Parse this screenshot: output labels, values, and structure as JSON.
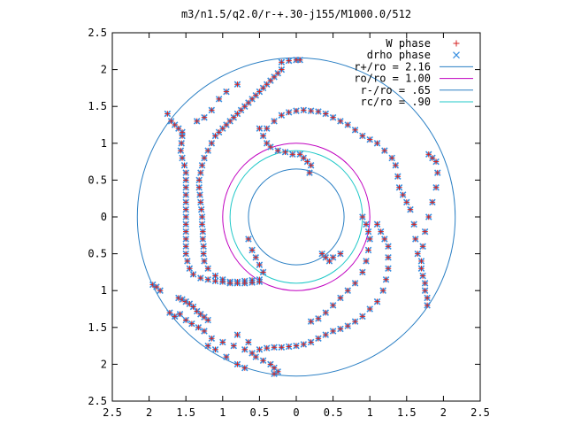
{
  "chart_data": {
    "type": "scatter",
    "title": "m3/n1.5/q2.0/r-+.30-j155/M1000.0/512",
    "xlabel": "",
    "ylabel": "",
    "xlim": [
      -2.5,
      2.5
    ],
    "ylim": [
      -2.5,
      2.5
    ],
    "x_ticks": [
      -2.5,
      -2,
      -1.5,
      -1,
      -0.5,
      0,
      0.5,
      1,
      1.5,
      2,
      2.5
    ],
    "x_tick_labels": [
      "2.5",
      "2",
      "1.5",
      "1",
      "0.5",
      "0",
      "0.5",
      "1",
      "1.5",
      "2",
      "2.5"
    ],
    "y_ticks": [
      2.5,
      2,
      1.5,
      1,
      0.5,
      0,
      -0.5,
      -1,
      -1.5,
      -2,
      -2.5
    ],
    "y_tick_labels": [
      "2.5",
      "2",
      "1.5",
      "1",
      "0.5",
      "0",
      "0.5",
      "1",
      "1.5",
      "2",
      "2.5"
    ],
    "grid": false,
    "legend_position": "top-right",
    "circles": [
      {
        "name": "r+/ro = 2.16",
        "radius": 2.16,
        "color": "#2a7fc4"
      },
      {
        "name": "ro/ro = 1.00",
        "radius": 1.0,
        "color": "#c000c0"
      },
      {
        "name": "r-/ro = .65",
        "radius": 0.65,
        "color": "#2a7fc4"
      },
      {
        "name": "rc/ro = .90",
        "radius": 0.9,
        "color": "#20c8c8"
      }
    ],
    "series": [
      {
        "name": "W phase",
        "marker": "+",
        "color": "#d42020"
      },
      {
        "name": "drho phase",
        "marker": "x",
        "color": "#3a8fe0"
      }
    ],
    "points": [
      [
        -0.2,
        2.1
      ],
      [
        -0.1,
        2.12
      ],
      [
        0.0,
        2.13
      ],
      [
        0.05,
        2.13
      ],
      [
        -0.2,
        2.0
      ],
      [
        -0.25,
        1.95
      ],
      [
        -0.3,
        1.9
      ],
      [
        -0.35,
        1.85
      ],
      [
        -0.4,
        1.8
      ],
      [
        -0.45,
        1.75
      ],
      [
        -0.5,
        1.7
      ],
      [
        -0.55,
        1.65
      ],
      [
        -0.6,
        1.6
      ],
      [
        -0.65,
        1.55
      ],
      [
        -0.7,
        1.5
      ],
      [
        -0.75,
        1.45
      ],
      [
        -0.8,
        1.4
      ],
      [
        -0.85,
        1.35
      ],
      [
        -0.9,
        1.3
      ],
      [
        -0.95,
        1.25
      ],
      [
        -1.0,
        1.2
      ],
      [
        -1.05,
        1.15
      ],
      [
        -1.1,
        1.1
      ],
      [
        -1.15,
        1.0
      ],
      [
        -1.2,
        0.9
      ],
      [
        -1.25,
        0.8
      ],
      [
        -1.28,
        0.7
      ],
      [
        -1.3,
        0.6
      ],
      [
        -1.32,
        0.5
      ],
      [
        -1.32,
        0.4
      ],
      [
        -1.31,
        0.3
      ],
      [
        -1.3,
        0.2
      ],
      [
        -1.29,
        0.1
      ],
      [
        -1.28,
        0.0
      ],
      [
        -1.28,
        -0.1
      ],
      [
        -1.27,
        -0.2
      ],
      [
        -1.27,
        -0.3
      ],
      [
        -1.26,
        -0.4
      ],
      [
        -1.26,
        -0.5
      ],
      [
        -1.25,
        -0.6
      ],
      [
        -1.2,
        -0.7
      ],
      [
        -1.1,
        -0.8
      ],
      [
        -1.0,
        -0.85
      ],
      [
        -0.9,
        -0.88
      ],
      [
        -0.8,
        -0.88
      ],
      [
        -0.7,
        -0.87
      ],
      [
        -0.6,
        -0.86
      ],
      [
        -0.5,
        -0.85
      ],
      [
        -0.45,
        -0.75
      ],
      [
        -0.5,
        -0.65
      ],
      [
        -0.55,
        -0.55
      ],
      [
        -0.6,
        -0.45
      ],
      [
        -0.65,
        -0.3
      ],
      [
        -0.8,
        1.8
      ],
      [
        -0.95,
        1.7
      ],
      [
        -1.05,
        1.6
      ],
      [
        -1.15,
        1.45
      ],
      [
        -1.25,
        1.35
      ],
      [
        -1.35,
        1.3
      ],
      [
        -1.75,
        1.4
      ],
      [
        -1.7,
        1.3
      ],
      [
        -1.65,
        1.25
      ],
      [
        -1.6,
        1.2
      ],
      [
        -1.55,
        1.15
      ],
      [
        -1.55,
        1.1
      ],
      [
        -1.56,
        1.0
      ],
      [
        -1.57,
        0.9
      ],
      [
        -1.55,
        0.8
      ],
      [
        -1.52,
        0.7
      ],
      [
        -1.5,
        0.6
      ],
      [
        -1.5,
        0.5
      ],
      [
        -1.5,
        0.4
      ],
      [
        -1.5,
        0.3
      ],
      [
        -1.5,
        0.2
      ],
      [
        -1.5,
        0.1
      ],
      [
        -1.5,
        0.0
      ],
      [
        -1.5,
        -0.1
      ],
      [
        -1.5,
        -0.2
      ],
      [
        -1.5,
        -0.3
      ],
      [
        -1.5,
        -0.4
      ],
      [
        -1.5,
        -0.5
      ],
      [
        -1.48,
        -0.6
      ],
      [
        -1.45,
        -0.7
      ],
      [
        -1.4,
        -0.78
      ],
      [
        -1.3,
        -0.83
      ],
      [
        -1.2,
        -0.85
      ],
      [
        -1.1,
        -0.87
      ],
      [
        -1.0,
        -0.88
      ],
      [
        -0.9,
        -0.9
      ],
      [
        -0.8,
        -0.9
      ],
      [
        -0.7,
        -0.9
      ],
      [
        -0.6,
        -0.89
      ],
      [
        -0.5,
        -0.88
      ],
      [
        -0.5,
        1.2
      ],
      [
        -0.45,
        1.1
      ],
      [
        -0.4,
        1.0
      ],
      [
        -0.35,
        0.95
      ],
      [
        -0.25,
        0.9
      ],
      [
        -0.15,
        0.88
      ],
      [
        -0.05,
        0.85
      ],
      [
        -0.4,
        1.2
      ],
      [
        -0.3,
        1.3
      ],
      [
        -0.2,
        1.38
      ],
      [
        -0.1,
        1.42
      ],
      [
        0.0,
        1.44
      ],
      [
        0.1,
        1.45
      ],
      [
        0.2,
        1.44
      ],
      [
        0.3,
        1.43
      ],
      [
        0.4,
        1.4
      ],
      [
        0.5,
        1.35
      ],
      [
        0.6,
        1.3
      ],
      [
        0.7,
        1.25
      ],
      [
        0.8,
        1.18
      ],
      [
        0.9,
        1.1
      ],
      [
        1.0,
        1.05
      ],
      [
        1.1,
        1.0
      ],
      [
        1.2,
        0.9
      ],
      [
        1.3,
        0.8
      ],
      [
        1.35,
        0.7
      ],
      [
        1.38,
        0.55
      ],
      [
        1.4,
        0.4
      ],
      [
        1.45,
        0.3
      ],
      [
        1.5,
        0.2
      ],
      [
        1.55,
        0.1
      ],
      [
        1.6,
        -0.1
      ],
      [
        1.62,
        -0.3
      ],
      [
        1.65,
        -0.5
      ],
      [
        1.7,
        -0.7
      ],
      [
        1.75,
        -0.9
      ],
      [
        1.78,
        -1.1
      ],
      [
        1.8,
        0.85
      ],
      [
        1.85,
        0.8
      ],
      [
        1.9,
        0.75
      ],
      [
        1.92,
        0.6
      ],
      [
        1.9,
        0.4
      ],
      [
        1.85,
        0.2
      ],
      [
        1.8,
        0.0
      ],
      [
        1.75,
        -0.2
      ],
      [
        1.72,
        -0.4
      ],
      [
        1.7,
        -0.6
      ],
      [
        1.72,
        -0.8
      ],
      [
        1.75,
        -1.0
      ],
      [
        1.78,
        -1.2
      ],
      [
        0.05,
        0.85
      ],
      [
        0.1,
        0.8
      ],
      [
        0.15,
        0.75
      ],
      [
        0.2,
        0.7
      ],
      [
        0.18,
        0.6
      ],
      [
        0.9,
        0.0
      ],
      [
        0.95,
        -0.1
      ],
      [
        0.98,
        -0.2
      ],
      [
        1.0,
        -0.3
      ],
      [
        0.98,
        -0.45
      ],
      [
        0.95,
        -0.6
      ],
      [
        0.9,
        -0.75
      ],
      [
        0.8,
        -0.9
      ],
      [
        0.7,
        -1.0
      ],
      [
        0.6,
        -1.1
      ],
      [
        0.5,
        -1.2
      ],
      [
        0.4,
        -1.3
      ],
      [
        0.3,
        -1.38
      ],
      [
        0.2,
        -1.42
      ],
      [
        1.1,
        -0.1
      ],
      [
        1.15,
        -0.2
      ],
      [
        1.2,
        -0.3
      ],
      [
        1.25,
        -0.4
      ],
      [
        1.25,
        -0.55
      ],
      [
        1.25,
        -0.7
      ],
      [
        1.22,
        -0.85
      ],
      [
        1.18,
        -1.0
      ],
      [
        1.1,
        -1.15
      ],
      [
        1.0,
        -1.25
      ],
      [
        0.9,
        -1.35
      ],
      [
        0.8,
        -1.42
      ],
      [
        0.7,
        -1.48
      ],
      [
        0.6,
        -1.52
      ],
      [
        0.5,
        -1.55
      ],
      [
        0.4,
        -1.6
      ],
      [
        0.3,
        -1.65
      ],
      [
        0.2,
        -1.7
      ],
      [
        0.1,
        -1.73
      ],
      [
        0.0,
        -1.75
      ],
      [
        -0.1,
        -1.76
      ],
      [
        -0.2,
        -1.77
      ],
      [
        -0.3,
        -1.77
      ],
      [
        -0.4,
        -1.78
      ],
      [
        -1.95,
        -0.92
      ],
      [
        -1.9,
        -0.95
      ],
      [
        -1.85,
        -1.0
      ],
      [
        -1.6,
        -1.1
      ],
      [
        -1.55,
        -1.12
      ],
      [
        -1.5,
        -1.15
      ],
      [
        -1.45,
        -1.18
      ],
      [
        -1.4,
        -1.22
      ],
      [
        -1.35,
        -1.28
      ],
      [
        -1.3,
        -1.32
      ],
      [
        -1.25,
        -1.36
      ],
      [
        -1.2,
        -1.4
      ],
      [
        -1.72,
        -1.3
      ],
      [
        -1.65,
        -1.35
      ],
      [
        -1.58,
        -1.32
      ],
      [
        -1.5,
        -1.4
      ],
      [
        -1.42,
        -1.45
      ],
      [
        -1.33,
        -1.5
      ],
      [
        -1.25,
        -1.55
      ],
      [
        -1.15,
        -1.65
      ],
      [
        -1.0,
        -1.7
      ],
      [
        -0.85,
        -1.75
      ],
      [
        -0.7,
        -1.8
      ],
      [
        -0.6,
        -1.85
      ],
      [
        -0.55,
        -1.9
      ],
      [
        -0.45,
        -1.95
      ],
      [
        -0.35,
        -2.0
      ],
      [
        -0.3,
        -2.05
      ],
      [
        -0.25,
        -2.1
      ],
      [
        -0.3,
        -2.13
      ],
      [
        -1.2,
        -1.75
      ],
      [
        -1.1,
        -1.8
      ],
      [
        -0.95,
        -1.9
      ],
      [
        -0.8,
        -2.0
      ],
      [
        -0.7,
        -2.05
      ],
      [
        -0.8,
        -1.6
      ],
      [
        -0.65,
        -1.7
      ],
      [
        -0.5,
        -1.8
      ],
      [
        0.6,
        -0.5
      ],
      [
        0.5,
        -0.55
      ],
      [
        0.45,
        -0.6
      ],
      [
        0.4,
        -0.55
      ],
      [
        0.35,
        -0.5
      ]
    ]
  },
  "legend": [
    {
      "label": "W phase",
      "type": "marker-plus",
      "color": "#d42020"
    },
    {
      "label": "drho phase",
      "type": "marker-x",
      "color": "#3a8fe0"
    },
    {
      "label": "r+/ro = 2.16",
      "type": "line",
      "color": "#2a7fc4"
    },
    {
      "label": "ro/ro = 1.00",
      "type": "line",
      "color": "#c000c0"
    },
    {
      "label": "r-/ro = .65",
      "type": "line",
      "color": "#2a7fc4"
    },
    {
      "label": "rc/ro = .90",
      "type": "line",
      "color": "#20c8c8"
    }
  ]
}
